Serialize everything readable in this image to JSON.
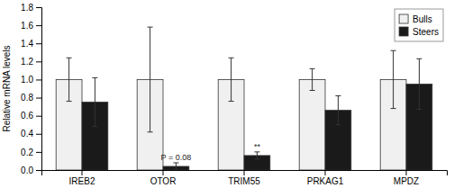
{
  "chart_data": {
    "type": "bar",
    "categories": [
      "IREB2",
      "OTOR",
      "TRIM55",
      "PRKAG1",
      "MPDZ"
    ],
    "series": [
      {
        "name": "Bulls",
        "color": "#f0f0f0",
        "values": [
          1.0,
          1.0,
          1.0,
          1.0,
          1.0
        ],
        "errors": [
          0.24,
          0.58,
          0.24,
          0.12,
          0.32
        ]
      },
      {
        "name": "Steers",
        "color": "#1a1a1a",
        "values": [
          0.75,
          0.04,
          0.16,
          0.66,
          0.95
        ],
        "errors": [
          0.27,
          0.04,
          0.04,
          0.16,
          0.28
        ]
      }
    ],
    "y_label": "Relative mRNA levels",
    "ylim": [
      0,
      1.8
    ],
    "yticks": [
      {
        "value": 0.0,
        "label": "0.0"
      },
      0.2,
      0.4,
      0.6,
      0.8,
      {
        "value": 1.0,
        "label": "1.0"
      },
      1.2,
      1.4,
      1.6,
      1.8
    ],
    "annotations": [
      {
        "text": "P = 0.08",
        "category": "OTOR",
        "series": "Steers"
      },
      {
        "text": "**",
        "category": "TRIM55",
        "series": "Steers"
      }
    ],
    "legend": "upper right",
    "grid": false
  }
}
